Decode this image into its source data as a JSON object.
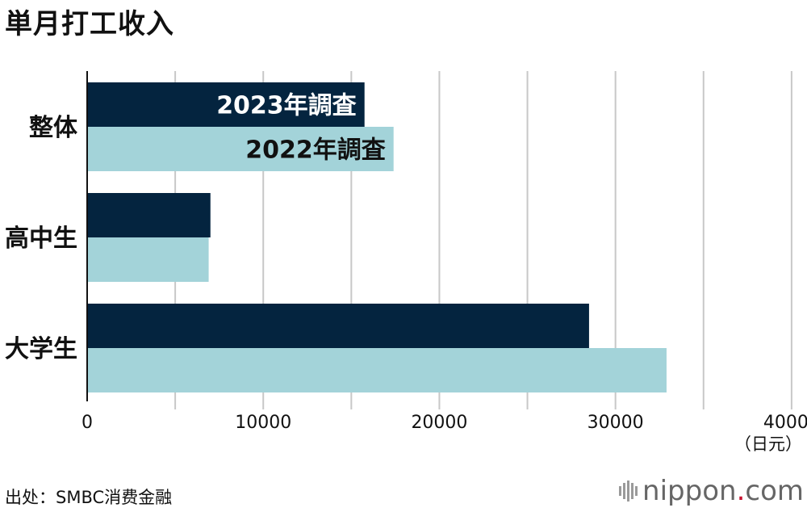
{
  "title": "単月打工收入",
  "unit": "（日元）",
  "source": "出处：SMBC消费金融",
  "brand": {
    "name": "nippon",
    "dot": ".",
    "tld": "com"
  },
  "colors": {
    "series_2023": "#04243f",
    "series_2022": "#a3d3d9",
    "grid": "#c8c8c8",
    "axis": "#111111"
  },
  "chart_data": {
    "type": "bar",
    "orientation": "horizontal",
    "categories": [
      "整体",
      "高中生",
      "大学生"
    ],
    "series": [
      {
        "name": "2023年調査",
        "values": [
          15750,
          7000,
          28500
        ]
      },
      {
        "name": "2022年調査",
        "values": [
          17400,
          6900,
          32900
        ]
      }
    ],
    "xlim": [
      0,
      45000
    ],
    "xticks": [
      "0",
      "10000",
      "20000",
      "30000",
      "40000"
    ],
    "grid": true,
    "legend": "series names drawn inside the first category's bars"
  }
}
